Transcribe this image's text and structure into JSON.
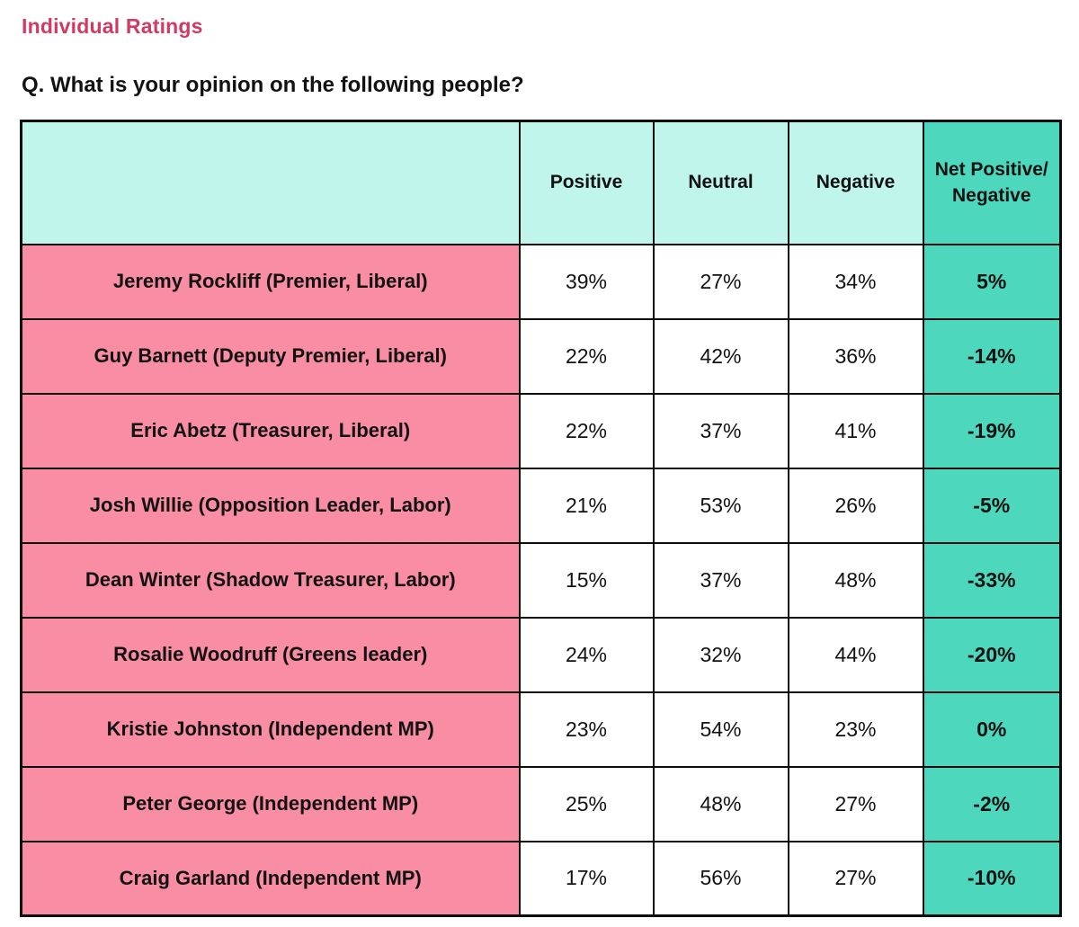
{
  "page": {
    "section_title": "Individual Ratings",
    "question": "Q. What is your opinion on the following people?"
  },
  "colors": {
    "title_text": "#d13a62",
    "header_mint": "#bff5ea",
    "net_teal": "#4dd8bd",
    "row_pink": "#f98da3",
    "border_black": "#0d0d0d",
    "text_black": "#121212"
  },
  "table": {
    "columns": {
      "name": "",
      "positive": "Positive",
      "neutral": "Neutral",
      "negative": "Negative",
      "net": "Net Positive/ Negative"
    },
    "rows": [
      {
        "name": "Jeremy Rockliff (Premier, Liberal)",
        "positive": "39%",
        "neutral": "27%",
        "negative": "34%",
        "net": "5%"
      },
      {
        "name": "Guy Barnett (Deputy Premier, Liberal)",
        "positive": "22%",
        "neutral": "42%",
        "negative": "36%",
        "net": "-14%"
      },
      {
        "name": "Eric Abetz (Treasurer, Liberal)",
        "positive": "22%",
        "neutral": "37%",
        "negative": "41%",
        "net": "-19%"
      },
      {
        "name": "Josh Willie (Opposition Leader, Labor)",
        "positive": "21%",
        "neutral": "53%",
        "negative": "26%",
        "net": "-5%"
      },
      {
        "name": "Dean Winter (Shadow Treasurer, Labor)",
        "positive": "15%",
        "neutral": "37%",
        "negative": "48%",
        "net": "-33%"
      },
      {
        "name": "Rosalie Woodruff (Greens leader)",
        "positive": "24%",
        "neutral": "32%",
        "negative": "44%",
        "net": "-20%"
      },
      {
        "name": "Kristie Johnston (Independent MP)",
        "positive": "23%",
        "neutral": "54%",
        "negative": "23%",
        "net": "0%"
      },
      {
        "name": "Peter George (Independent MP)",
        "positive": "25%",
        "neutral": "48%",
        "negative": "27%",
        "net": "-2%"
      },
      {
        "name": "Craig Garland (Independent MP)",
        "positive": "17%",
        "neutral": "56%",
        "negative": "27%",
        "net": "-10%"
      }
    ]
  },
  "chart_data": {
    "type": "table",
    "title": "Individual Ratings",
    "subtitle": "Q. What is your opinion on the following people?",
    "columns": [
      "Positive",
      "Neutral",
      "Negative",
      "Net Positive/Negative"
    ],
    "units": "%",
    "rows": [
      {
        "name": "Jeremy Rockliff (Premier, Liberal)",
        "values": [
          39,
          27,
          34,
          5
        ]
      },
      {
        "name": "Guy Barnett (Deputy Premier, Liberal)",
        "values": [
          22,
          42,
          36,
          -14
        ]
      },
      {
        "name": "Eric Abetz (Treasurer, Liberal)",
        "values": [
          22,
          37,
          41,
          -19
        ]
      },
      {
        "name": "Josh Willie (Opposition Leader, Labor)",
        "values": [
          21,
          53,
          26,
          -5
        ]
      },
      {
        "name": "Dean Winter (Shadow Treasurer, Labor)",
        "values": [
          15,
          37,
          48,
          -33
        ]
      },
      {
        "name": "Rosalie Woodruff (Greens leader)",
        "values": [
          24,
          32,
          44,
          -20
        ]
      },
      {
        "name": "Kristie Johnston (Independent MP)",
        "values": [
          23,
          54,
          23,
          0
        ]
      },
      {
        "name": "Peter George (Independent MP)",
        "values": [
          25,
          48,
          27,
          -2
        ]
      },
      {
        "name": "Craig Garland (Independent MP)",
        "values": [
          17,
          56,
          27,
          -10
        ]
      }
    ]
  }
}
